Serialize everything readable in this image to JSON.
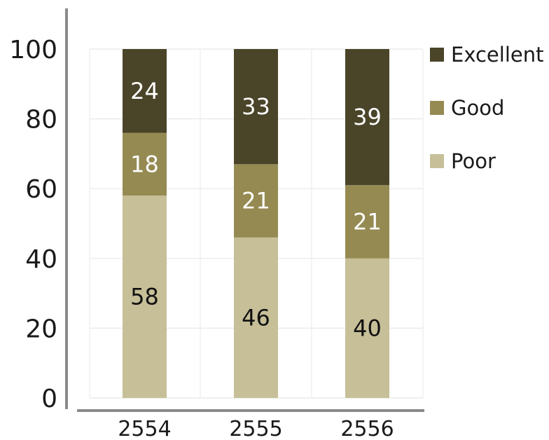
{
  "chart_data": {
    "type": "bar",
    "stacked": true,
    "categories": [
      "2554",
      "2555",
      "2556"
    ],
    "series": [
      {
        "name": "Poor",
        "values": [
          58,
          46,
          40
        ],
        "color": "#c6bf98",
        "label_color": "#111111"
      },
      {
        "name": "Good",
        "values": [
          18,
          21,
          21
        ],
        "color": "#958a52",
        "label_color": "#ffffff"
      },
      {
        "name": "Excellent",
        "values": [
          24,
          33,
          39
        ],
        "color": "#4a4429",
        "label_color": "#ffffff"
      }
    ],
    "legend_order": [
      "Excellent",
      "Good",
      "Poor"
    ],
    "legend_position": "top-right",
    "yticks": [
      0,
      20,
      40,
      60,
      80,
      100
    ],
    "ylim": [
      0,
      100
    ],
    "grid": true,
    "title": "",
    "xlabel": "",
    "ylabel": ""
  }
}
